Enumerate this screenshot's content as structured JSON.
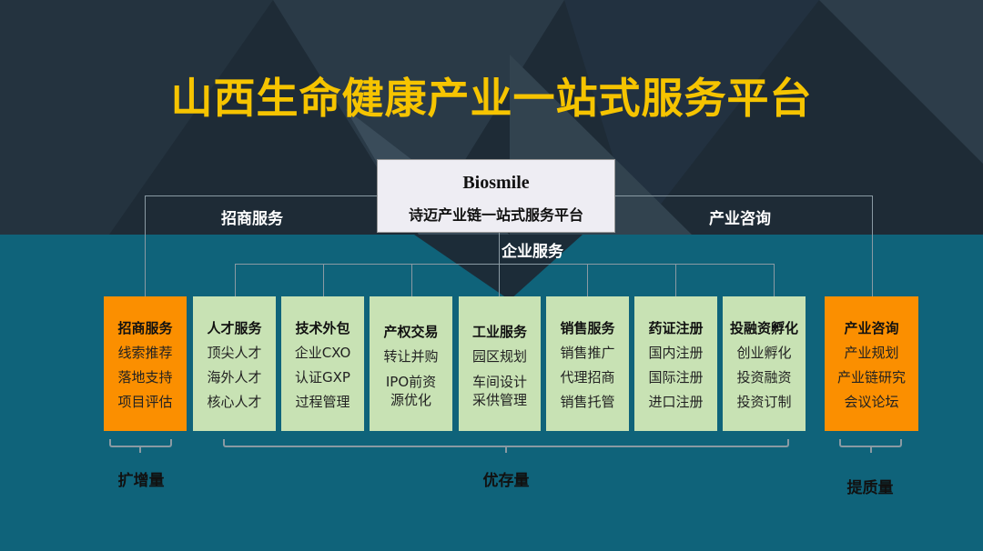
{
  "title": "山西生命健康产业一站式服务平台",
  "platform": {
    "name_en": "Biosmile",
    "name_zh": "诗迈产业链一站式服务平台"
  },
  "branches": {
    "left": "招商服务",
    "center": "企业服务",
    "right": "产业咨询"
  },
  "boxes": [
    {
      "title": "招商服务",
      "items": [
        "线索推荐",
        "落地支持",
        "项目评估"
      ],
      "color": "#fb8f00"
    },
    {
      "title": "人才服务",
      "items": [
        "顶尖人才",
        "海外人才",
        "核心人才"
      ],
      "color": "#c8e2b4"
    },
    {
      "title": "技术外包",
      "items": [
        "企业CXO",
        "认证GXP",
        "过程管理"
      ],
      "color": "#c8e2b4"
    },
    {
      "title": "产权交易",
      "items": [
        "转让并购",
        "IPO前资源优化"
      ],
      "color": "#c8e2b4"
    },
    {
      "title": "工业服务",
      "items": [
        "园区规划",
        "车间设计采供管理"
      ],
      "color": "#c8e2b4"
    },
    {
      "title": "销售服务",
      "items": [
        "销售推广",
        "代理招商",
        "销售托管"
      ],
      "color": "#c8e2b4"
    },
    {
      "title": "药证注册",
      "items": [
        "国内注册",
        "国际注册",
        "进口注册"
      ],
      "color": "#c8e2b4"
    },
    {
      "title": "投融资孵化",
      "items": [
        "创业孵化",
        "投资融资",
        "投资订制"
      ],
      "color": "#c8e2b4"
    },
    {
      "title": "产业咨询",
      "items": [
        "产业规划",
        "产业链研究",
        "会议论坛"
      ],
      "color": "#fb8f00"
    }
  ],
  "groups": [
    "扩增量",
    "优存量",
    "提质量"
  ],
  "colors": {
    "title": "#f6c400",
    "orange": "#fb8f00",
    "green": "#c8e2b4",
    "teal": "#0f637a",
    "dark": "#1d2a35"
  }
}
